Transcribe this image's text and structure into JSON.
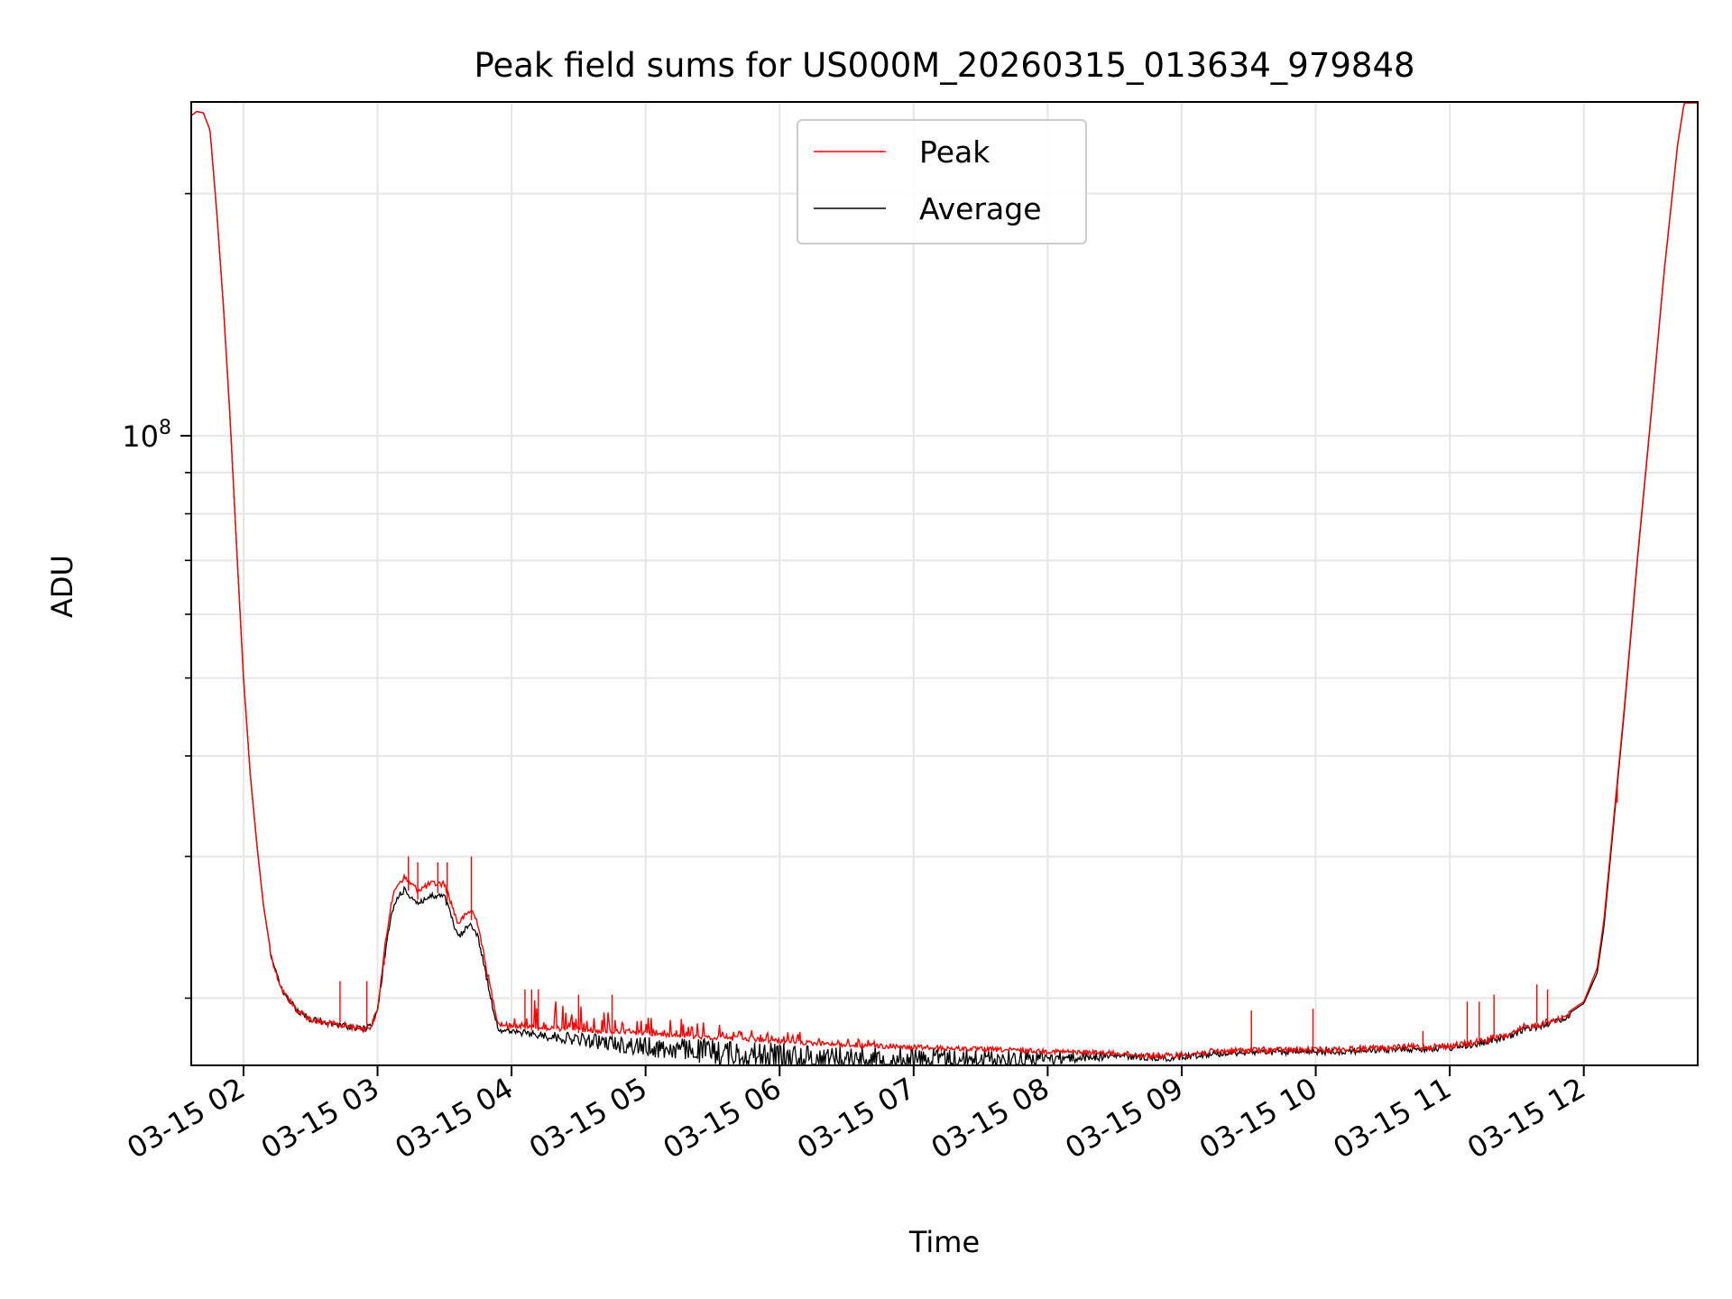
{
  "chart_data": {
    "type": "line",
    "title": "Peak field sums for US000M_20260315_013634_979848",
    "xlabel": "Time",
    "ylabel": "ADU",
    "yscale": "log",
    "x_unit": "hours after 03-15 00:00",
    "xlim": [
      1.61,
      12.85
    ],
    "ylim": [
      16500000,
      260000000
    ],
    "y_major_ticks": [
      {
        "value": 100000000,
        "base": "10",
        "exp": "8"
      }
    ],
    "y_minor_ticks": [
      20000000,
      30000000,
      40000000,
      50000000,
      60000000,
      70000000,
      80000000,
      90000000,
      200000000
    ],
    "x_ticks": [
      {
        "value": 2,
        "label": "03-15 02"
      },
      {
        "value": 3,
        "label": "03-15 03"
      },
      {
        "value": 4,
        "label": "03-15 04"
      },
      {
        "value": 5,
        "label": "03-15 05"
      },
      {
        "value": 6,
        "label": "03-15 06"
      },
      {
        "value": 7,
        "label": "03-15 07"
      },
      {
        "value": 8,
        "label": "03-15 08"
      },
      {
        "value": 9,
        "label": "03-15 09"
      },
      {
        "value": 10,
        "label": "03-15 10"
      },
      {
        "value": 11,
        "label": "03-15 11"
      },
      {
        "value": 12,
        "label": "03-15 12"
      }
    ],
    "grid": true,
    "legend_position": "top-center",
    "series": [
      {
        "name": "Average",
        "color": "#000000",
        "x": [
          1.61,
          1.65,
          1.7,
          1.75,
          1.8,
          1.85,
          1.9,
          1.95,
          2.0,
          2.05,
          2.1,
          2.15,
          2.2,
          2.25,
          2.3,
          2.4,
          2.5,
          2.6,
          2.7,
          2.8,
          2.9,
          2.95,
          3.0,
          3.05,
          3.1,
          3.15,
          3.2,
          3.3,
          3.4,
          3.5,
          3.55,
          3.6,
          3.65,
          3.7,
          3.75,
          3.8,
          3.85,
          3.9,
          4.0,
          4.5,
          5.0,
          5.5,
          6.0,
          6.5,
          7.0,
          7.5,
          8.0,
          8.5,
          8.9,
          9.2,
          9.5,
          10.0,
          10.5,
          11.0,
          11.2,
          11.4,
          11.5,
          11.55,
          11.6,
          11.7,
          11.8,
          11.9,
          12.0,
          12.1,
          12.15,
          12.2,
          12.3,
          12.4,
          12.5,
          12.6,
          12.7,
          12.75,
          12.85
        ],
        "values": [
          250000000,
          253000000,
          252000000,
          240000000,
          190000000,
          145000000,
          105000000,
          72000000,
          50000000,
          38000000,
          31000000,
          26000000,
          23000000,
          21500000,
          20500000,
          19500000,
          19000000,
          18800000,
          18700000,
          18600000,
          18500000,
          18600000,
          19500000,
          22500000,
          25500000,
          27000000,
          27500000,
          26500000,
          27000000,
          27000000,
          25500000,
          24000000,
          24500000,
          25000000,
          24000000,
          22000000,
          20000000,
          18500000,
          18300000,
          18100000,
          17900000,
          17800000,
          17600000,
          17500000,
          17400000,
          17300000,
          17200000,
          17100000,
          17000000,
          17200000,
          17300000,
          17300000,
          17400000,
          17500000,
          17700000,
          18000000,
          18200000,
          18500000,
          18500000,
          18700000,
          18900000,
          19200000,
          19700000,
          21500000,
          24500000,
          30000000,
          45000000,
          70000000,
          105000000,
          160000000,
          230000000,
          260000000,
          260000000
        ]
      },
      {
        "name": "Peak",
        "color": "#ff0000",
        "x": [
          1.61,
          1.65,
          1.7,
          1.75,
          1.8,
          1.85,
          1.9,
          1.95,
          2.0,
          2.05,
          2.1,
          2.15,
          2.2,
          2.25,
          2.3,
          2.4,
          2.5,
          2.6,
          2.7,
          2.8,
          2.9,
          2.95,
          3.0,
          3.05,
          3.1,
          3.15,
          3.2,
          3.3,
          3.4,
          3.5,
          3.55,
          3.6,
          3.65,
          3.7,
          3.75,
          3.8,
          3.85,
          3.9,
          4.0,
          4.5,
          5.0,
          5.5,
          6.0,
          6.5,
          7.0,
          7.5,
          8.0,
          8.5,
          8.9,
          9.2,
          9.5,
          10.0,
          10.5,
          11.0,
          11.2,
          11.4,
          11.5,
          11.55,
          11.6,
          11.7,
          11.8,
          11.9,
          12.0,
          12.1,
          12.15,
          12.2,
          12.3,
          12.4,
          12.5,
          12.6,
          12.7,
          12.75,
          12.85
        ],
        "values": [
          250000000,
          253000000,
          252000000,
          240000000,
          190000000,
          145000000,
          105000000,
          72000000,
          50000000,
          38000000,
          31000000,
          26000000,
          23000000,
          21500000,
          20500000,
          19500000,
          19000000,
          18800000,
          18700000,
          18600000,
          18500000,
          18600000,
          19500000,
          23000000,
          26500000,
          28000000,
          28500000,
          27500000,
          28000000,
          28000000,
          26500000,
          25000000,
          25500000,
          26000000,
          25000000,
          22500000,
          20500000,
          18800000,
          18600000,
          18400000,
          18200000,
          18000000,
          17800000,
          17600000,
          17500000,
          17400000,
          17300000,
          17200000,
          17100000,
          17300000,
          17400000,
          17400000,
          17500000,
          17600000,
          17800000,
          18100000,
          18300000,
          18600000,
          18600000,
          18800000,
          19000000,
          19300000,
          19800000,
          21800000,
          25000000,
          30500000,
          45500000,
          70500000,
          105500000,
          160500000,
          230000000,
          260000000,
          260000000
        ],
        "spikes": [
          {
            "x": 3.23,
            "value": 30000000
          },
          {
            "x": 3.3,
            "value": 29500000
          },
          {
            "x": 3.45,
            "value": 29500000
          },
          {
            "x": 3.52,
            "value": 29500000
          },
          {
            "x": 3.7,
            "value": 30000000
          },
          {
            "x": 2.72,
            "value": 21000000
          },
          {
            "x": 2.92,
            "value": 21000000
          },
          {
            "x": 3.05,
            "value": 22000000
          },
          {
            "x": 4.1,
            "value": 20500000
          },
          {
            "x": 4.15,
            "value": 20500000
          },
          {
            "x": 4.2,
            "value": 20500000
          },
          {
            "x": 4.5,
            "value": 20200000
          },
          {
            "x": 4.75,
            "value": 20200000
          },
          {
            "x": 9.52,
            "value": 19300000
          },
          {
            "x": 9.98,
            "value": 19400000
          },
          {
            "x": 10.8,
            "value": 18200000
          },
          {
            "x": 11.13,
            "value": 19800000
          },
          {
            "x": 11.22,
            "value": 19800000
          },
          {
            "x": 11.33,
            "value": 20200000
          },
          {
            "x": 11.65,
            "value": 20800000
          },
          {
            "x": 11.73,
            "value": 20500000
          },
          {
            "x": 12.25,
            "value": 35000000
          }
        ]
      }
    ],
    "legend": [
      {
        "name": "Peak",
        "color": "#ff0000"
      },
      {
        "name": "Average",
        "color": "#000000"
      }
    ]
  }
}
